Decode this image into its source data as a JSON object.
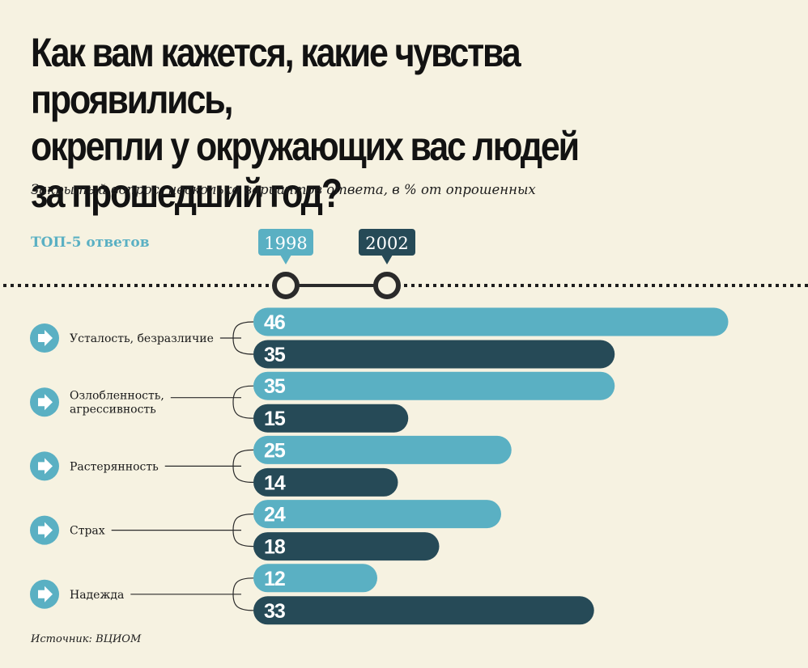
{
  "title_lines": [
    "Как вам кажется, какие чувства проявились,",
    "окрепли у окружающих вас людей",
    "за прошедший год?"
  ],
  "subtitle": "Закрытый вопрос, несколько вариантов ответа, в % от опрошенных",
  "top_label": "ТОП-5 ответов",
  "source": "Источник: ВЦИОМ",
  "colors": {
    "background": "#f6f2e1",
    "series_1998": "#5ab0c3",
    "series_2002": "#264a57",
    "text": "#121212"
  },
  "chart_data": {
    "type": "bar",
    "orientation": "horizontal",
    "categories": [
      [
        "Усталость, безразличие"
      ],
      [
        "Озлобленность,",
        "агрессивность"
      ],
      [
        "Растерянность"
      ],
      [
        "Страх"
      ],
      [
        "Надежда"
      ]
    ],
    "series": [
      {
        "name": "1998",
        "values": [
          46,
          35,
          25,
          24,
          12
        ]
      },
      {
        "name": "2002",
        "values": [
          35,
          15,
          14,
          18,
          33
        ]
      }
    ],
    "unit": "%"
  }
}
